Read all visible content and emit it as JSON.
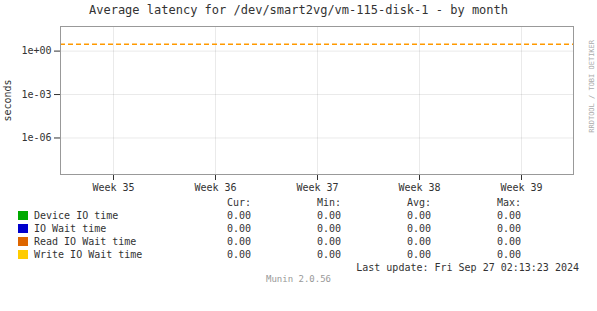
{
  "chart_data": {
    "type": "line",
    "title": "Average latency for /dev/smart2vg/vm-115-disk-1 - by month",
    "ylabel": "seconds",
    "categories": [
      "Week 35",
      "Week 36",
      "Week 37",
      "Week 38",
      "Week 39"
    ],
    "series": [
      {
        "name": "Device IO time",
        "color": "#00aa00",
        "values": [
          null,
          null,
          null,
          null,
          null
        ],
        "stats": [
          "0.00",
          "0.00",
          "0.00",
          "0.00"
        ]
      },
      {
        "name": "IO Wait time",
        "color": "#0000cc",
        "values": [
          null,
          null,
          null,
          null,
          null
        ],
        "stats": [
          "0.00",
          "0.00",
          "0.00",
          "0.00"
        ]
      },
      {
        "name": "Read IO Wait time",
        "color": "#dd6600",
        "values": [
          null,
          null,
          null,
          null,
          null
        ],
        "stats": [
          "0.00",
          "0.00",
          "0.00",
          "0.00"
        ]
      },
      {
        "name": "Write IO Wait time",
        "color": "#ffcc00",
        "values": [
          null,
          null,
          null,
          null,
          null
        ],
        "stats": [
          "0.00",
          "0.00",
          "0.00",
          "0.00"
        ]
      }
    ],
    "stats_headers": [
      "Cur:",
      "Min:",
      "Avg:",
      "Max:"
    ],
    "ylim": [
      3e-09,
      50
    ],
    "yticks": [
      {
        "value": 1e-06,
        "label": "1e-06"
      },
      {
        "value": 0.001,
        "label": "1e-03"
      },
      {
        "value": 1,
        "label": "1e+00"
      }
    ],
    "log": "y",
    "grid": true,
    "hline": {
      "y": 3,
      "color": "#ff9900",
      "line_style": "dashed"
    },
    "footer": "Last update: Fri Sep 27 02:13:23 2024",
    "caption": "Munin 2.0.56",
    "watermark": "RRDTOOL / TOBI OETIKER"
  }
}
